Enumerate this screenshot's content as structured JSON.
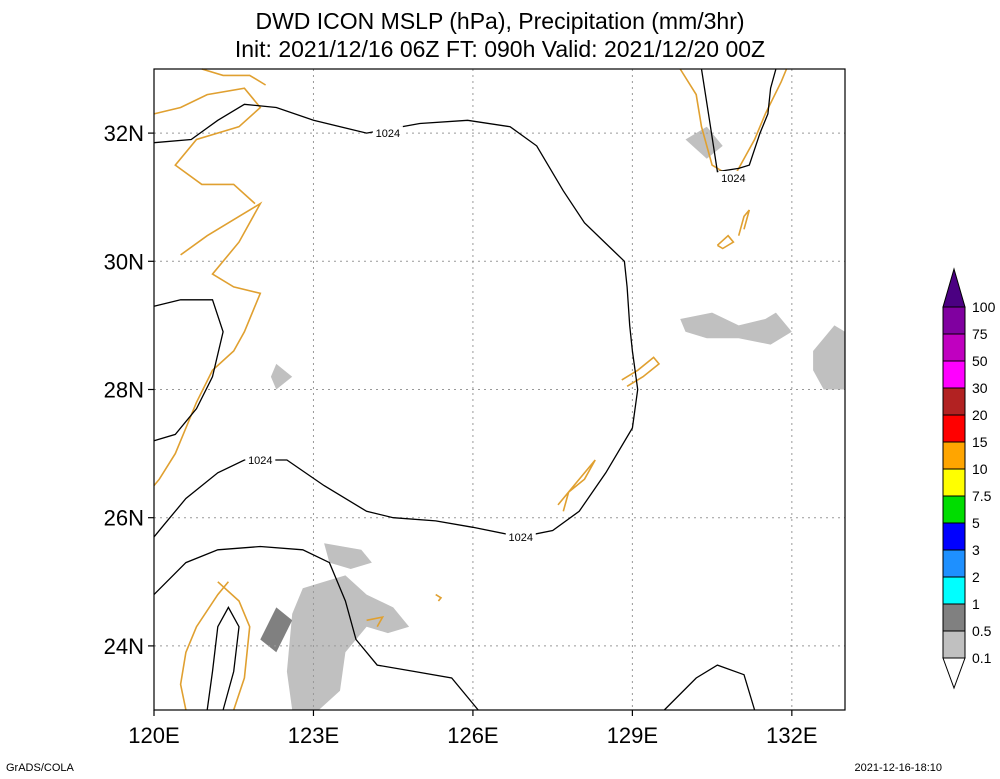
{
  "title": {
    "line1": "DWD ICON MSLP (hPa), Precipitation (mm/3hr)",
    "line2": "Init: 2021/12/16 06Z  FT: 090h  Valid: 2021/12/20 00Z"
  },
  "footer": {
    "left": "GrADS/COLA",
    "right": "2021-12-16-18:10"
  },
  "chart_data": {
    "type": "map",
    "xlim": [
      120,
      133
    ],
    "ylim": [
      23,
      33
    ],
    "x_ticks": [
      {
        "value": 120,
        "label": "120E"
      },
      {
        "value": 123,
        "label": "123E"
      },
      {
        "value": 126,
        "label": "126E"
      },
      {
        "value": 129,
        "label": "129E"
      },
      {
        "value": 132,
        "label": "132E"
      }
    ],
    "y_ticks": [
      {
        "value": 24,
        "label": "24N"
      },
      {
        "value": 26,
        "label": "26N"
      },
      {
        "value": 28,
        "label": "28N"
      },
      {
        "value": 30,
        "label": "30N"
      },
      {
        "value": 32,
        "label": "32N"
      }
    ],
    "grid": true,
    "colorbar": {
      "levels": [
        "0.1",
        "0.5",
        "1",
        "2",
        "3",
        "5",
        "7.5",
        "10",
        "15",
        "20",
        "30",
        "50",
        "75",
        "100"
      ],
      "colors": [
        "#ffffff",
        "#c0c0c0",
        "#808080",
        "#00ffff",
        "#1e90ff",
        "#0000ff",
        "#00dd00",
        "#ffff00",
        "#ffa500",
        "#ff0000",
        "#b22222",
        "#ff00ff",
        "#c000c0",
        "#8000a0",
        "#4b0082"
      ]
    },
    "isobar_labels": [
      {
        "text": "1024",
        "lon": 124.4,
        "lat": 32.0
      },
      {
        "text": "1024",
        "lon": 122.0,
        "lat": 26.9
      },
      {
        "text": "1024",
        "lon": 126.9,
        "lat": 25.7
      },
      {
        "text": "1024",
        "lon": 130.9,
        "lat": 31.3
      }
    ],
    "isobars": [
      {
        "value": 1024,
        "points": [
          [
            120,
            31.85
          ],
          [
            120.7,
            31.9
          ],
          [
            121.2,
            32.2
          ],
          [
            121.7,
            32.45
          ],
          [
            122.3,
            32.4
          ],
          [
            123,
            32.2
          ],
          [
            124,
            32
          ],
          [
            125,
            32.15
          ],
          [
            125.9,
            32.2
          ],
          [
            126.7,
            32.1
          ],
          [
            127.2,
            31.8
          ],
          [
            127.7,
            31.1
          ],
          [
            128.1,
            30.6
          ],
          [
            128.6,
            30.2
          ],
          [
            128.85,
            30
          ],
          [
            128.9,
            29.6
          ],
          [
            128.95,
            29
          ],
          [
            129.0,
            28.6
          ],
          [
            129.1,
            28.0
          ],
          [
            129.0,
            27.4
          ],
          [
            128.5,
            26.7
          ],
          [
            128,
            26.1
          ],
          [
            127.5,
            25.8
          ],
          [
            126.9,
            25.7
          ],
          [
            126,
            25.85
          ],
          [
            125.3,
            25.95
          ],
          [
            124.5,
            26
          ],
          [
            124,
            26.1
          ],
          [
            123.2,
            26.5
          ],
          [
            122.5,
            26.9
          ],
          [
            121.7,
            26.9
          ],
          [
            121.2,
            26.7
          ],
          [
            120.6,
            26.3
          ],
          [
            120.2,
            25.9
          ],
          [
            120,
            25.7
          ]
        ]
      },
      {
        "value": 1024,
        "points": [
          [
            130.3,
            33
          ],
          [
            130.45,
            32.2
          ],
          [
            130.6,
            31.4
          ],
          [
            131.0,
            31.45
          ],
          [
            131.2,
            31.5
          ],
          [
            131.4,
            32
          ],
          [
            131.55,
            32.3
          ],
          [
            131.6,
            32.7
          ],
          [
            131.7,
            33
          ]
        ]
      },
      {
        "value": 1024,
        "points": [
          [
            120,
            27.2
          ],
          [
            120.4,
            27.3
          ],
          [
            120.8,
            27.7
          ],
          [
            121.1,
            28.2
          ],
          [
            121.3,
            28.9
          ],
          [
            121.1,
            29.4
          ],
          [
            120.5,
            29.4
          ],
          [
            120,
            29.3
          ]
        ]
      },
      {
        "value": 1024,
        "points": [
          [
            120,
            24.8
          ],
          [
            120.6,
            25.3
          ],
          [
            121.2,
            25.5
          ],
          [
            122,
            25.55
          ],
          [
            122.8,
            25.5
          ],
          [
            123.3,
            25.3
          ],
          [
            123.6,
            24.7
          ],
          [
            123.8,
            24.1
          ],
          [
            124.2,
            23.7
          ],
          [
            124.9,
            23.6
          ],
          [
            125.6,
            23.5
          ],
          [
            126.1,
            23
          ]
        ]
      },
      {
        "value": 1024,
        "points": [
          [
            129.6,
            23
          ],
          [
            130.2,
            23.5
          ],
          [
            130.6,
            23.7
          ],
          [
            131.1,
            23.55
          ],
          [
            131.3,
            23
          ]
        ]
      },
      {
        "value": 1024,
        "points": [
          [
            121.0,
            23
          ],
          [
            121.1,
            23.6
          ],
          [
            121.2,
            24.3
          ],
          [
            121.4,
            24.6
          ],
          [
            121.6,
            24.3
          ],
          [
            121.5,
            23.6
          ],
          [
            121.3,
            23
          ]
        ]
      }
    ],
    "coastlines": [
      {
        "points": [
          [
            120.5,
            30.1
          ],
          [
            121.0,
            30.4
          ],
          [
            121.6,
            30.7
          ],
          [
            122.0,
            30.9
          ],
          [
            121.6,
            30.3
          ],
          [
            121.1,
            29.8
          ],
          [
            121.5,
            29.6
          ],
          [
            122.0,
            29.5
          ],
          [
            121.7,
            28.9
          ],
          [
            121.5,
            28.6
          ],
          [
            121.1,
            28.3
          ],
          [
            120.8,
            27.8
          ],
          [
            120.6,
            27.4
          ],
          [
            120.4,
            27.0
          ],
          [
            120.1,
            26.6
          ],
          [
            120.0,
            26.5
          ]
        ]
      },
      {
        "points": [
          [
            120,
            32.3
          ],
          [
            120.5,
            32.4
          ],
          [
            121.0,
            32.6
          ],
          [
            121.7,
            32.7
          ],
          [
            122.0,
            32.4
          ],
          [
            121.6,
            32.1
          ],
          [
            120.8,
            31.9
          ],
          [
            120.4,
            31.5
          ],
          [
            120.9,
            31.2
          ],
          [
            121.5,
            31.2
          ],
          [
            121.9,
            30.9
          ]
        ]
      },
      {
        "points": [
          [
            120.9,
            33
          ],
          [
            121.3,
            32.9
          ],
          [
            121.8,
            32.9
          ],
          [
            122.1,
            32.75
          ]
        ]
      },
      {
        "points": [
          [
            121.2,
            25.0
          ],
          [
            121.6,
            24.7
          ],
          [
            121.8,
            24.3
          ],
          [
            121.7,
            23.5
          ],
          [
            121.5,
            23.0
          ]
        ]
      },
      {
        "points": [
          [
            120.6,
            23.0
          ],
          [
            120.5,
            23.4
          ],
          [
            120.6,
            23.9
          ],
          [
            120.8,
            24.3
          ],
          [
            121.2,
            24.8
          ],
          [
            121.4,
            25.0
          ]
        ]
      },
      {
        "points": [
          [
            129.9,
            33.0
          ],
          [
            130.2,
            32.6
          ],
          [
            130.3,
            32.1
          ],
          [
            130.5,
            31.5
          ],
          [
            130.9,
            31.3
          ],
          [
            131.1,
            31.6
          ],
          [
            131.3,
            31.9
          ],
          [
            131.5,
            32.3
          ],
          [
            131.8,
            32.8
          ],
          [
            131.9,
            33.0
          ]
        ]
      },
      {
        "points": [
          [
            130.6,
            30.25
          ],
          [
            130.8,
            30.4
          ],
          [
            130.9,
            30.3
          ],
          [
            130.7,
            30.2
          ],
          [
            130.6,
            30.25
          ]
        ]
      },
      {
        "points": [
          [
            131.0,
            30.4
          ],
          [
            131.1,
            30.7
          ],
          [
            131.2,
            30.8
          ],
          [
            131.1,
            30.5
          ]
        ]
      },
      {
        "points": [
          [
            128.8,
            28.15
          ],
          [
            129.1,
            28.3
          ],
          [
            129.4,
            28.5
          ],
          [
            129.5,
            28.4
          ],
          [
            129.2,
            28.2
          ],
          [
            128.9,
            28.05
          ]
        ]
      },
      {
        "points": [
          [
            127.6,
            26.2
          ],
          [
            127.9,
            26.5
          ],
          [
            128.2,
            26.8
          ],
          [
            128.3,
            26.9
          ],
          [
            128.1,
            26.6
          ],
          [
            127.8,
            26.4
          ],
          [
            127.7,
            26.1
          ]
        ]
      },
      {
        "points": [
          [
            125.3,
            24.8
          ],
          [
            125.4,
            24.75
          ],
          [
            125.35,
            24.7
          ]
        ]
      },
      {
        "points": [
          [
            124.0,
            24.4
          ],
          [
            124.3,
            24.45
          ],
          [
            124.2,
            24.3
          ]
        ]
      }
    ],
    "precip_areas": [
      {
        "level": "0.1-0.5",
        "points": [
          [
            129.9,
            29.1
          ],
          [
            130.5,
            29.2
          ],
          [
            131.0,
            29.0
          ],
          [
            131.5,
            29.1
          ],
          [
            131.7,
            29.2
          ],
          [
            132.0,
            28.9
          ],
          [
            131.6,
            28.7
          ],
          [
            131.0,
            28.8
          ],
          [
            130.4,
            28.8
          ],
          [
            130.0,
            28.9
          ]
        ]
      },
      {
        "level": "0.1-0.5",
        "points": [
          [
            132.4,
            28.6
          ],
          [
            132.8,
            29.0
          ],
          [
            133.0,
            28.9
          ],
          [
            133.0,
            28.0
          ],
          [
            132.6,
            28.0
          ],
          [
            132.4,
            28.3
          ]
        ]
      },
      {
        "level": "0.1-0.5",
        "points": [
          [
            122.6,
            24.5
          ],
          [
            122.8,
            24.9
          ],
          [
            123.2,
            25.0
          ],
          [
            123.6,
            25.1
          ],
          [
            124.0,
            24.8
          ],
          [
            124.5,
            24.6
          ],
          [
            124.8,
            24.3
          ],
          [
            124.4,
            24.2
          ],
          [
            124.0,
            24.3
          ],
          [
            123.6,
            23.9
          ],
          [
            123.5,
            23.3
          ],
          [
            123.1,
            23.0
          ],
          [
            122.6,
            23.0
          ],
          [
            122.5,
            23.6
          ]
        ]
      },
      {
        "level": "0.1-0.5",
        "points": [
          [
            123.2,
            25.6
          ],
          [
            123.9,
            25.5
          ],
          [
            124.1,
            25.3
          ],
          [
            123.7,
            25.2
          ],
          [
            123.3,
            25.3
          ]
        ]
      },
      {
        "level": "0.1-0.5",
        "points": [
          [
            122.3,
            28.4
          ],
          [
            122.6,
            28.2
          ],
          [
            122.3,
            28.0
          ],
          [
            122.2,
            28.2
          ]
        ]
      },
      {
        "level": "0.1-0.5",
        "points": [
          [
            130.0,
            31.9
          ],
          [
            130.4,
            32.1
          ],
          [
            130.7,
            31.8
          ],
          [
            130.4,
            31.6
          ]
        ]
      },
      {
        "level": "0.5-1",
        "points": [
          [
            122.0,
            24.1
          ],
          [
            122.3,
            24.6
          ],
          [
            122.6,
            24.4
          ],
          [
            122.3,
            23.9
          ]
        ]
      }
    ]
  }
}
